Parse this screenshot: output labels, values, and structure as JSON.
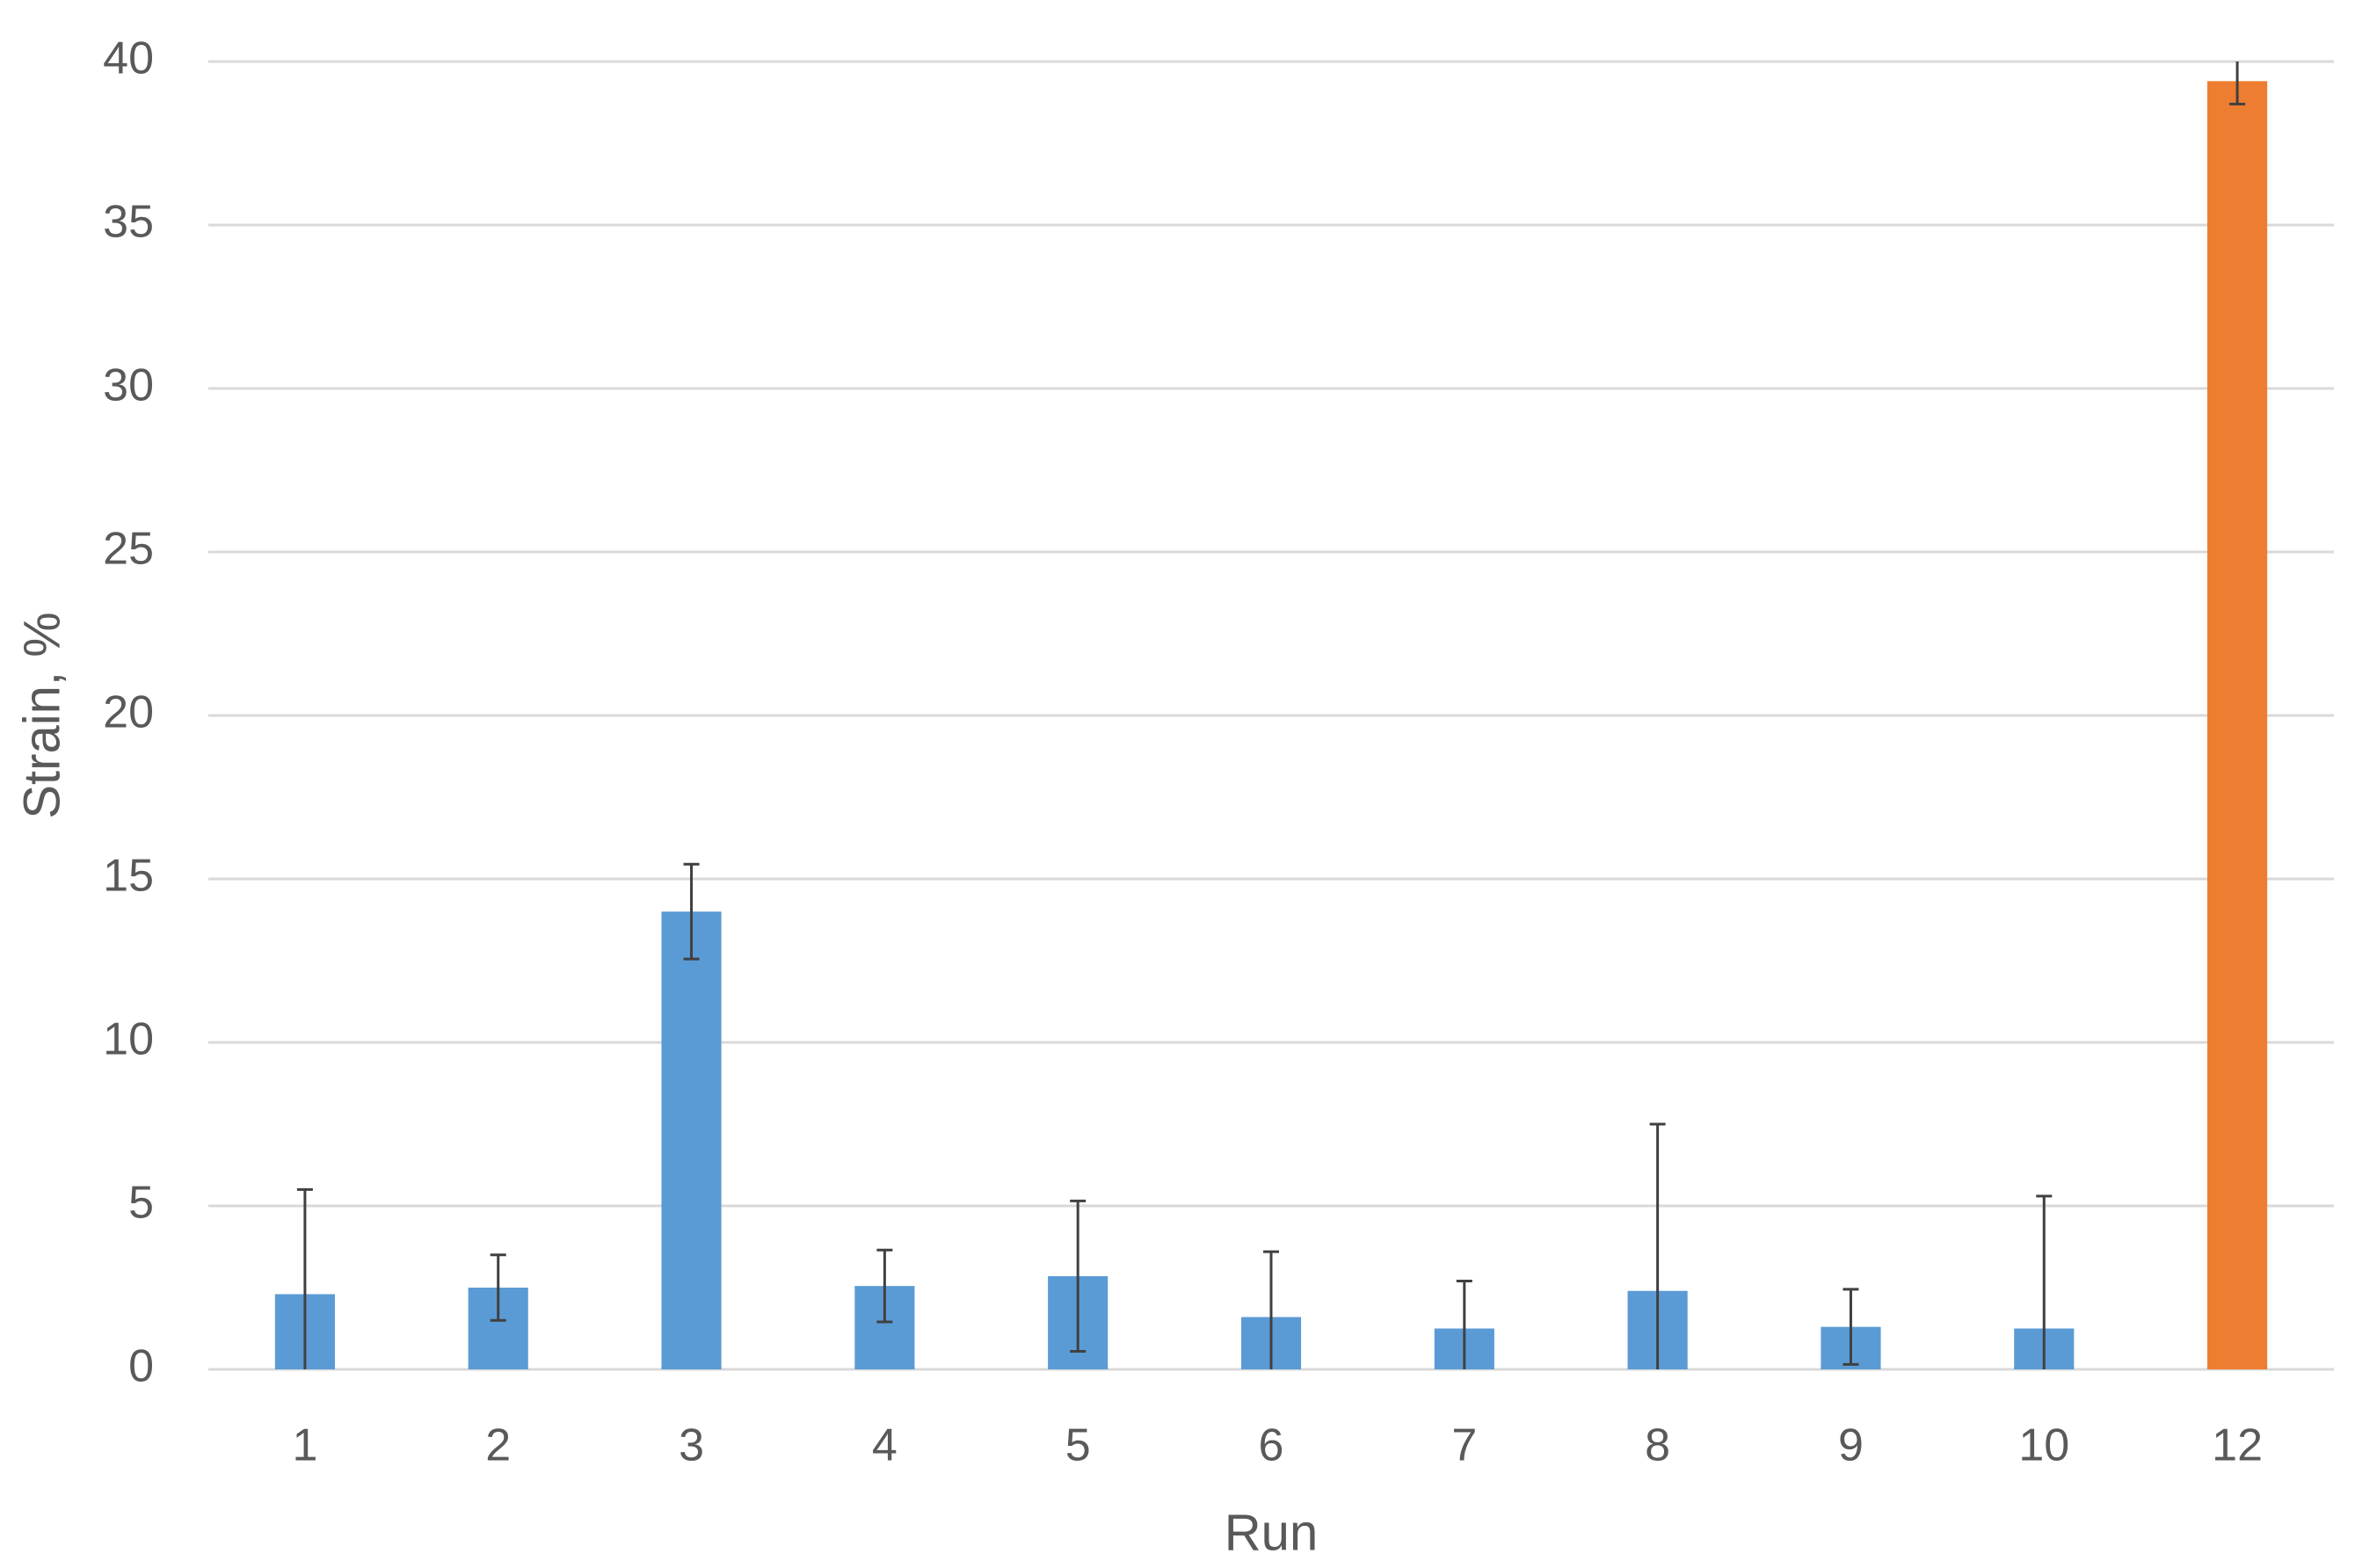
{
  "chart_data": {
    "type": "bar",
    "x_label": "Run",
    "y_label": "Strain, %",
    "categories": [
      "1",
      "2",
      "3",
      "4",
      "5",
      "6",
      "7",
      "8",
      "9",
      "10",
      "12"
    ],
    "values": [
      2.3,
      2.5,
      14,
      2.55,
      2.85,
      1.6,
      1.25,
      2.4,
      1.3,
      1.25,
      39.4
    ],
    "errors": [
      3.2,
      1.0,
      1.45,
      1.1,
      2.3,
      2.0,
      1.45,
      5.1,
      1.15,
      4.05,
      0.7
    ],
    "colors": [
      "#5b9bd5",
      "#5b9bd5",
      "#5b9bd5",
      "#5b9bd5",
      "#5b9bd5",
      "#5b9bd5",
      "#5b9bd5",
      "#5b9bd5",
      "#5b9bd5",
      "#5b9bd5",
      "#ed7d31"
    ],
    "ylim": [
      0,
      40
    ],
    "yticks": [
      0,
      5,
      10,
      15,
      20,
      25,
      30,
      35,
      40
    ],
    "grid": true
  }
}
